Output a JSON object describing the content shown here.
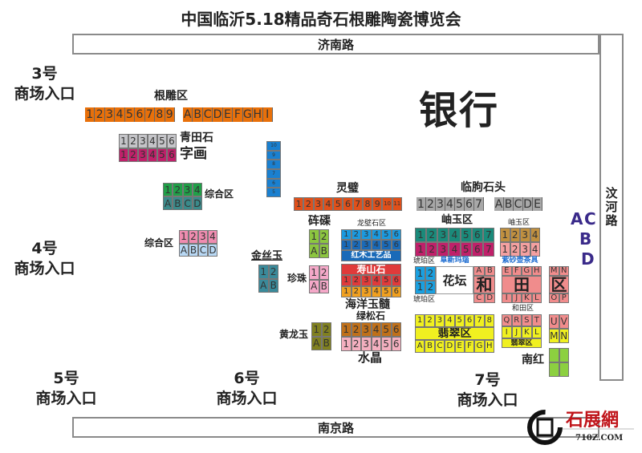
{
  "title": "中国临沂5.18精品奇石根雕陶瓷博览会",
  "roads": {
    "north": "济南路",
    "east": "汶河路",
    "south": "南京路"
  },
  "entrances": {
    "e3": [
      "3号",
      "商场入口"
    ],
    "e4": [
      "4号",
      "商场入口"
    ],
    "e5": [
      "5号",
      "商场入口"
    ],
    "e6": [
      "6号",
      "商场入口"
    ],
    "e7": [
      "7号",
      "商场入口"
    ]
  },
  "bank": "银行",
  "labels": {
    "gendiao": "根雕区",
    "qingtian": "青田石",
    "zihua": "字画",
    "zonghe1": "综合区",
    "zonghe2": "综合区",
    "lingbi": "灵璧",
    "linqu": "临朐石头",
    "chequ": "砗磲",
    "longbi": "龙壁石区",
    "jinsiyu": "金丝玉",
    "zhenzhu": "珍珠",
    "haiyang": "海洋玉髓",
    "lvsong": "绿松石",
    "shuijing": "水晶",
    "huanglong": "黄龙玉",
    "xiuyu1": "岫玉区",
    "xiuyu2": "岫玉区",
    "hupo1": "琥珀区",
    "hupo2": "琥珀区",
    "hetian": "和田区",
    "nanhong": "南红",
    "huatan": "花坛"
  },
  "gate_letters": [
    "A",
    "C",
    "B",
    "D"
  ],
  "gate_color": "#3a2a8a",
  "blocks": [
    {
      "id": "gendiao-num",
      "rows": [
        {
          "color": "#e8700a",
          "cells": [
            "1",
            "2",
            "3",
            "4",
            "5",
            "6",
            "7",
            "8",
            "9"
          ]
        }
      ]
    },
    {
      "id": "gendiao-alpha",
      "rows": [
        {
          "color": "#e8700a",
          "cells": [
            "A",
            "B",
            "C",
            "D",
            "E",
            "F",
            "G",
            "H",
            "I"
          ]
        }
      ]
    },
    {
      "id": "qingtian",
      "rows": [
        {
          "color": "#c4c4c8",
          "cells": [
            "1",
            "2",
            "3",
            "4",
            "5",
            "6"
          ]
        },
        {
          "color": "#c0206a",
          "cells": [
            "1",
            "2",
            "3",
            "4",
            "5",
            "6"
          ]
        }
      ]
    },
    {
      "id": "zonghe1",
      "rows": [
        {
          "color": "#20a048",
          "cells": [
            "1",
            "2",
            "3",
            "4"
          ]
        },
        {
          "color": "#3a8a8a",
          "cells": [
            "A",
            "B",
            "C",
            "D"
          ]
        }
      ]
    },
    {
      "id": "zonghe2",
      "rows": [
        {
          "color": "#f08cb0",
          "cells": [
            "1",
            "2",
            "3",
            "4"
          ]
        },
        {
          "color": "#b8d8f4",
          "cells": [
            "A",
            "B",
            "C",
            "D"
          ]
        }
      ]
    },
    {
      "id": "blue-strip",
      "overlay": "",
      "rows": [
        {
          "color": "#1a80d0",
          "cells": [
            "10"
          ]
        },
        {
          "color": "#1a80d0",
          "cells": [
            "9"
          ]
        },
        {
          "color": "#1a80d0",
          "cells": [
            "8"
          ]
        },
        {
          "color": "#1a80d0",
          "cells": [
            "7"
          ]
        },
        {
          "color": "#1a80d0",
          "cells": [
            "6"
          ]
        },
        {
          "color": "#1a80d0",
          "cells": [
            "5"
          ]
        }
      ]
    },
    {
      "id": "lingbi",
      "rows": [
        {
          "color": "#e0501a",
          "cells": [
            "1",
            "2",
            "3",
            "4",
            "5",
            "6",
            "7",
            "8",
            "9",
            "10",
            "11"
          ]
        }
      ]
    },
    {
      "id": "linqu-num",
      "rows": [
        {
          "color": "#a8a8a8",
          "cells": [
            "1",
            "2",
            "3",
            "4",
            "5",
            "6",
            "7"
          ]
        }
      ]
    },
    {
      "id": "linqu-alpha",
      "rows": [
        {
          "color": "#a8a8a8",
          "cells": [
            "A",
            "B",
            "C",
            "D",
            "E"
          ]
        }
      ]
    },
    {
      "id": "chequ",
      "rows": [
        {
          "color": "#8cc63f",
          "cells": [
            "1",
            "2"
          ]
        },
        {
          "color": "#8cc63f",
          "cells": [
            "A",
            "B"
          ]
        }
      ]
    },
    {
      "id": "jinsiyu",
      "rows": [
        {
          "color": "#3a8a9a",
          "cells": [
            "1",
            "2"
          ]
        },
        {
          "color": "#3a8a9a",
          "cells": [
            "A",
            "B"
          ]
        }
      ]
    },
    {
      "id": "longbi",
      "overlay": "红木工艺品",
      "rows": [
        {
          "color": "#1a9ae0",
          "cells": [
            "1",
            "2",
            "3",
            "4",
            "5",
            "6"
          ]
        },
        {
          "color": "#1a6ab8",
          "cells": [
            "1",
            "2",
            "3",
            "4",
            "5",
            "6"
          ]
        }
      ]
    },
    {
      "id": "zhenzhu",
      "rows": [
        {
          "color": "#f4a8c8",
          "cells": [
            "1",
            "2"
          ]
        },
        {
          "color": "#f4a8c8",
          "cells": [
            "A",
            "B"
          ]
        }
      ]
    },
    {
      "id": "shoushan",
      "overlay": "寿山石",
      "rows": [
        {
          "color": "#e03a3a",
          "cells": [
            "1",
            "2",
            "3",
            "4",
            "5",
            "6"
          ]
        },
        {
          "color": "#f0a020",
          "cells": [
            "1",
            "2",
            "3",
            "4",
            "5",
            "6"
          ]
        }
      ]
    },
    {
      "id": "lvsong",
      "rows": [
        {
          "color": "#c0701a",
          "cells": [
            "1",
            "2",
            "3",
            "4",
            "5",
            "6"
          ]
        },
        {
          "color": "#f4b0c0",
          "cells": [
            "1",
            "2",
            "3",
            "4",
            "5",
            "6"
          ]
        }
      ]
    },
    {
      "id": "huanglong",
      "rows": [
        {
          "color": "#808020",
          "cells": [
            "1",
            "2"
          ]
        },
        {
          "color": "#808020",
          "cells": [
            "A",
            "B"
          ]
        }
      ]
    },
    {
      "id": "xiuyu1",
      "overlay": "阜新玛瑙",
      "rows": [
        {
          "color": "#1a8a7a",
          "cells": [
            "1",
            "2",
            "3",
            "4",
            "5",
            "6",
            "7"
          ]
        },
        {
          "color": "#c0206a",
          "cells": [
            "1",
            "2",
            "3",
            "4",
            "5",
            "6",
            "7"
          ]
        }
      ]
    },
    {
      "id": "xiuyu2",
      "overlay": "紫砂壶茶具",
      "rows": [
        {
          "color": "#c09040",
          "cells": [
            "1",
            "2",
            "3",
            "4"
          ]
        },
        {
          "color": "#f4a0a0",
          "cells": [
            "1",
            "2",
            "3",
            "4"
          ]
        }
      ]
    },
    {
      "id": "hupo",
      "rows": [
        {
          "color": "#1aa0e0",
          "cells": [
            "1",
            "2"
          ]
        },
        {
          "color": "#1aa0e0",
          "cells": [
            "1",
            "2"
          ]
        }
      ]
    },
    {
      "id": "he",
      "overlay": "和",
      "rows": [
        {
          "color": "#f08c8c",
          "cells": [
            "A",
            "B"
          ]
        },
        {
          "color": "#f08c8c",
          "cells": [
            "C",
            "D"
          ]
        }
      ]
    },
    {
      "id": "tian",
      "overlay": "田",
      "rows": [
        {
          "color": "#f08c8c",
          "cells": [
            "E",
            "F",
            "G",
            "H"
          ]
        },
        {
          "color": "#f08c8c",
          "cells": [
            "I",
            "J",
            "K",
            "L"
          ]
        }
      ]
    },
    {
      "id": "qu",
      "overlay": "区",
      "rows": [
        {
          "color": "#f08c8c",
          "cells": [
            "M",
            "N"
          ]
        },
        {
          "color": "#f08c8c",
          "cells": [
            "O",
            "P"
          ]
        }
      ]
    },
    {
      "id": "feicui",
      "overlay": "翡翠区",
      "rows": [
        {
          "color": "#f0f020",
          "cells": [
            "1",
            "2",
            "3",
            "4",
            "5",
            "6",
            "7",
            "8"
          ]
        },
        {
          "color": "#f0f020",
          "cells": [
            "A",
            "B",
            "C",
            "D",
            "E",
            "F",
            "G",
            "H"
          ]
        }
      ]
    },
    {
      "id": "hetian",
      "overlay": "翡翠区",
      "rows": [
        {
          "color": "#f08c8c",
          "cells": [
            "Q",
            "R",
            "S",
            "T"
          ]
        },
        {
          "color": "#f0f020",
          "cells": [
            "I",
            "J",
            "K",
            "L"
          ]
        }
      ]
    },
    {
      "id": "uv",
      "rows": [
        {
          "color": "#f08c8c",
          "cells": [
            "U",
            "V"
          ]
        },
        {
          "color": "#f0f020",
          "cells": [
            "M",
            "N"
          ]
        }
      ]
    },
    {
      "id": "nanhong",
      "rows": [
        {
          "color": "#8cd040",
          "cells": [
            "",
            ""
          ]
        },
        {
          "color": "#8cd040",
          "cells": [
            "",
            ""
          ]
        }
      ]
    }
  ],
  "logo": {
    "name": "石展網",
    "url_text": "710Z.COM"
  }
}
